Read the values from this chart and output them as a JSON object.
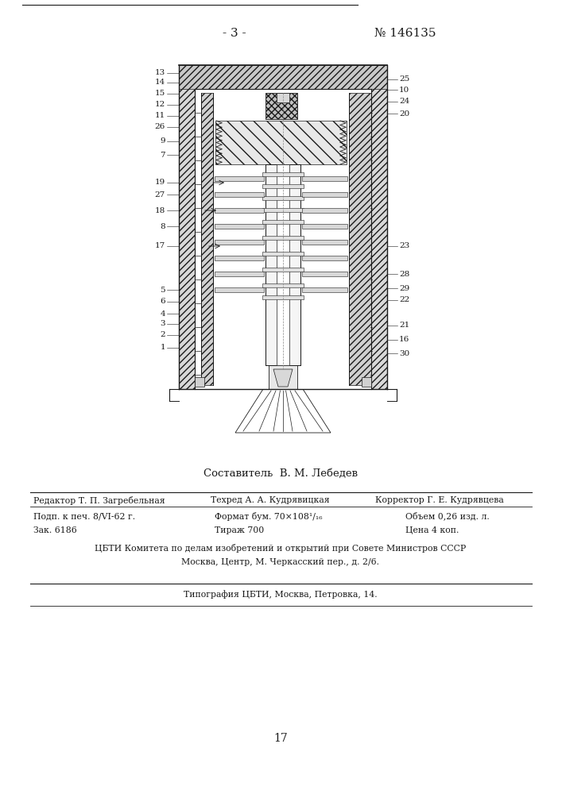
{
  "page_number": "- 3 -",
  "patent_number": "№ 146135",
  "page_footer_number": "17",
  "composer_text": "Составитель  В. М. Лебедев",
  "row1_left": "Редактор Т. П. Загребельная",
  "row1_mid": "Техред А. А. Кудрявицкая",
  "row1_right": "Корректор Г. Е. Кудрявцева",
  "row2_col1": "Подп. к печ. 8/VI-62 г.",
  "row2_col2": "Формат бум. 70×108¹/₁₆",
  "row2_col3": "Объем 0,26 изд. л.",
  "row3_col1": "Зак. 6186",
  "row3_col2": "Тираж 700",
  "row3_col3": "Цена 4 коп.",
  "row4": "ЦБТИ Комитета по делам изобретений и открытий при Совете Министров СССР",
  "row5": "Москва, Центр, М. Черкасский пер., д. 2/6.",
  "row6": "Типография ЦБТИ, Москва, Петровка, 14.",
  "bg_color": "#ffffff",
  "text_color": "#1a1a1a",
  "line_color": "#1a1a1a",
  "hatch_color": "#888888"
}
